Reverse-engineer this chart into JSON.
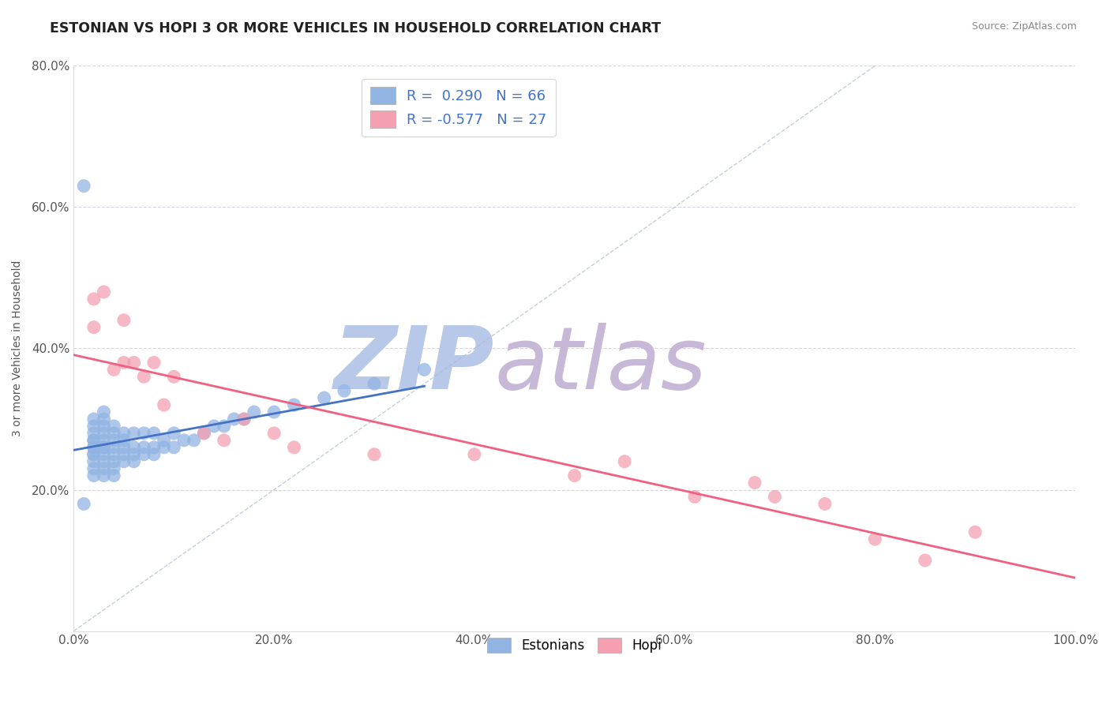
{
  "title": "ESTONIAN VS HOPI 3 OR MORE VEHICLES IN HOUSEHOLD CORRELATION CHART",
  "source": "Source: ZipAtlas.com",
  "ylabel": "3 or more Vehicles in Household",
  "xlim": [
    0.0,
    100.0
  ],
  "ylim": [
    0.0,
    80.0
  ],
  "xtick_labels": [
    "0.0%",
    "20.0%",
    "40.0%",
    "60.0%",
    "80.0%",
    "100.0%"
  ],
  "xtick_vals": [
    0,
    20,
    40,
    60,
    80,
    100
  ],
  "ytick_labels": [
    "20.0%",
    "40.0%",
    "60.0%",
    "80.0%"
  ],
  "ytick_vals": [
    20,
    40,
    60,
    80
  ],
  "R_estonian": 0.29,
  "N_estonian": 66,
  "R_hopi": -0.577,
  "N_hopi": 27,
  "legend_label_estonian": "Estonians",
  "legend_label_hopi": "Hopi",
  "estonian_color": "#92b4e3",
  "hopi_color": "#f4a0b0",
  "estonian_line_color": "#4472c4",
  "hopi_line_color": "#f06080",
  "watermark_zip": "ZIP",
  "watermark_atlas": "atlas",
  "watermark_color_zip": "#b8c8e8",
  "watermark_color_atlas": "#c8b8d8",
  "background_color": "#ffffff",
  "estonian_x": [
    1,
    2,
    2,
    2,
    2,
    2,
    2,
    2,
    2,
    2,
    2,
    2,
    2,
    3,
    3,
    3,
    3,
    3,
    3,
    3,
    3,
    3,
    3,
    3,
    4,
    4,
    4,
    4,
    4,
    4,
    4,
    4,
    5,
    5,
    5,
    5,
    5,
    6,
    6,
    6,
    6,
    7,
    7,
    7,
    8,
    8,
    8,
    9,
    9,
    10,
    10,
    11,
    12,
    13,
    14,
    15,
    16,
    17,
    18,
    20,
    22,
    25,
    27,
    30,
    35,
    1
  ],
  "estonian_y": [
    63,
    22,
    23,
    24,
    25,
    25,
    26,
    26,
    27,
    27,
    28,
    29,
    30,
    22,
    23,
    24,
    25,
    26,
    26,
    27,
    28,
    29,
    30,
    31,
    22,
    23,
    24,
    25,
    26,
    27,
    28,
    29,
    24,
    25,
    26,
    27,
    28,
    24,
    25,
    26,
    28,
    25,
    26,
    28,
    25,
    26,
    28,
    26,
    27,
    26,
    28,
    27,
    27,
    28,
    29,
    29,
    30,
    30,
    31,
    31,
    32,
    33,
    34,
    35,
    37,
    18
  ],
  "hopi_x": [
    2,
    2,
    3,
    4,
    5,
    5,
    6,
    7,
    8,
    9,
    10,
    13,
    15,
    17,
    20,
    22,
    30,
    40,
    50,
    55,
    62,
    68,
    70,
    75,
    80,
    85,
    90
  ],
  "hopi_y": [
    47,
    43,
    48,
    37,
    44,
    38,
    38,
    36,
    38,
    32,
    36,
    28,
    27,
    30,
    28,
    26,
    25,
    25,
    22,
    24,
    19,
    21,
    19,
    18,
    13,
    10,
    14
  ]
}
